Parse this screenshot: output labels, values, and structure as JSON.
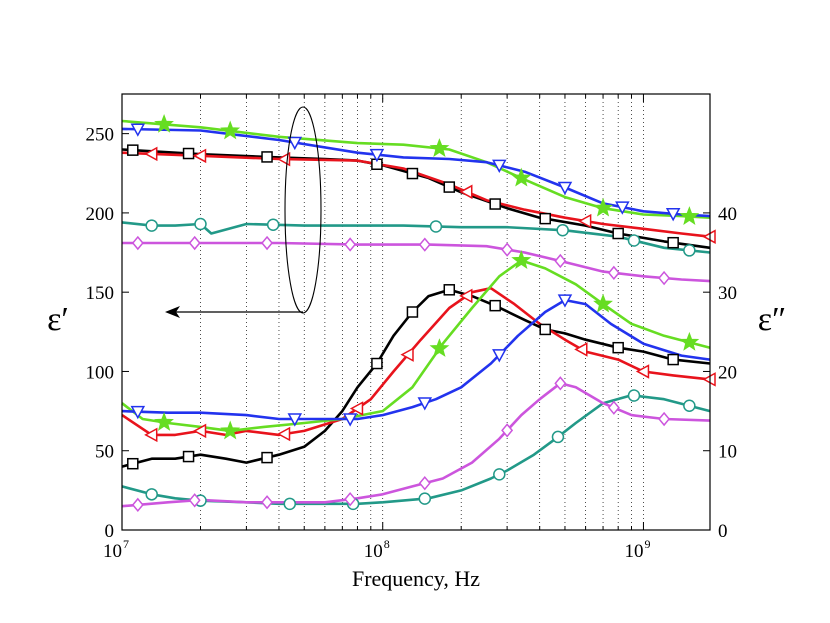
{
  "chart_data": {
    "type": "line",
    "title": "",
    "xlabel": "Frequency, Hz",
    "ylabel_left": "ε′",
    "ylabel_right": "ε″",
    "xscale": "log",
    "xlim": [
      10000000,
      1800000000
    ],
    "ylim_left": [
      0,
      275
    ],
    "ylim_right": [
      0,
      55
    ],
    "xticks": [
      {
        "value": 10000000,
        "base": "10",
        "exp": "7"
      },
      {
        "value": 100000000,
        "base": "10",
        "exp": "8"
      },
      {
        "value": 1000000000,
        "base": "10",
        "exp": "9"
      }
    ],
    "yticks_left": [
      "0",
      "50",
      "100",
      "150",
      "200",
      "250"
    ],
    "yticks_left_values": [
      0,
      50,
      100,
      150,
      200,
      250
    ],
    "yticks_right": [
      "0",
      "10",
      "20",
      "30",
      "40"
    ],
    "yticks_right_values": [
      0,
      10,
      20,
      30,
      40
    ],
    "grid": "dotted vertical",
    "annotation": "ellipse around ε′ curves with arrow pointing to left axis",
    "series": [
      {
        "name": "black-square",
        "color": "#000000",
        "marker": "square",
        "axis": "left",
        "x": [
          10000000.0,
          20000000.0,
          40000000.0,
          60000000.0,
          80000000.0,
          100000000.0,
          150000000.0,
          200000000.0,
          300000000.0,
          400000000.0,
          600000000.0,
          800000000.0,
          1200000000.0,
          1800000000.0
        ],
        "y": [
          240,
          237,
          235,
          234,
          233,
          230,
          222,
          213,
          203,
          197,
          192,
          187,
          182,
          178
        ],
        "mx": [
          11000000.0,
          18000000.0,
          36000000.0,
          95000000.0,
          130000000.0,
          180000000.0,
          270000000.0,
          420000000.0,
          800000000.0,
          1300000000.0
        ]
      },
      {
        "name": "red-triangle",
        "color": "#e8131c",
        "marker": "triangle-left",
        "axis": "left",
        "x": [
          10000000.0,
          20000000.0,
          40000000.0,
          80000000.0,
          120000000.0,
          180000000.0,
          250000000.0,
          350000000.0,
          500000000.0,
          700000000.0,
          1000000000.0,
          1400000000.0,
          1800000000.0
        ],
        "y": [
          238,
          236,
          234,
          233,
          228,
          218,
          208,
          202,
          197,
          193,
          190,
          187,
          185
        ],
        "mx": [
          13000000.0,
          20000000.0,
          42000000.0,
          210000000.0,
          600000000.0,
          1800000000.0
        ]
      },
      {
        "name": "green-star",
        "color": "#66dd22",
        "marker": "star",
        "axis": "left",
        "x": [
          10000000.0,
          20000000.0,
          40000000.0,
          80000000.0,
          120000000.0,
          180000000.0,
          250000000.0,
          350000000.0,
          500000000.0,
          700000000.0,
          1000000000.0,
          1400000000.0,
          1800000000.0
        ],
        "y": [
          258,
          254,
          248,
          244,
          243,
          240,
          232,
          221,
          210,
          203,
          199,
          198,
          197
        ],
        "mx": [
          14500000.0,
          26000000.0,
          165000000.0,
          340000000.0,
          700000000.0,
          1500000000.0
        ]
      },
      {
        "name": "blue-triangle",
        "color": "#2233ee",
        "marker": "triangle-down",
        "axis": "left",
        "x": [
          10000000.0,
          20000000.0,
          40000000.0,
          80000000.0,
          120000000.0,
          180000000.0,
          250000000.0,
          350000000.0,
          500000000.0,
          700000000.0,
          1000000000.0,
          1400000000.0,
          1800000000.0
        ],
        "y": [
          253,
          252,
          246,
          238,
          235,
          234,
          232,
          226,
          216,
          206,
          201,
          199,
          198
        ],
        "mx": [
          11500000.0,
          46000000.0,
          95000000.0,
          280000000.0,
          500000000.0,
          830000000.0,
          1300000000.0
        ]
      },
      {
        "name": "teal-circle",
        "color": "#229988",
        "marker": "circle",
        "axis": "left",
        "x": [
          10000000.0,
          13000000.0,
          16000000.0,
          20000000.0,
          22000000.0,
          30000000.0,
          50000000.0,
          80000000.0,
          120000000.0,
          200000000.0,
          300000000.0,
          500000000.0,
          800000000.0,
          1200000000.0,
          1800000000.0
        ],
        "y": [
          194,
          192,
          192,
          193,
          187,
          193,
          192,
          192,
          192,
          191,
          191,
          189,
          185,
          178,
          175
        ],
        "mx": [
          13000000.0,
          20000000.0,
          38000000.0,
          160000000.0,
          490000000.0,
          920000000.0,
          1500000000.0
        ]
      },
      {
        "name": "magenta-diamond",
        "color": "#cc55dd",
        "marker": "diamond",
        "axis": "left",
        "x": [
          10000000.0,
          20000000.0,
          40000000.0,
          80000000.0,
          150000000.0,
          250000000.0,
          350000000.0,
          500000000.0,
          700000000.0,
          1000000000.0,
          1400000000.0,
          1800000000.0
        ],
        "y": [
          181,
          181,
          181,
          180,
          180,
          179,
          175,
          169,
          163,
          160,
          158,
          157
        ],
        "mx": [
          11500000.0,
          19000000.0,
          36000000.0,
          75000000.0,
          145000000.0,
          300000000.0,
          480000000.0,
          770000000.0,
          1200000000.0
        ]
      },
      {
        "name": "black-square-loss",
        "color": "#000000",
        "marker": "square",
        "axis": "right",
        "x": [
          10000000.0,
          13000000.0,
          16000000.0,
          20000000.0,
          25000000.0,
          30000000.0,
          40000000.0,
          50000000.0,
          60000000.0,
          70000000.0,
          80000000.0,
          95000000.0,
          110000000.0,
          130000000.0,
          150000000.0,
          180000000.0,
          220000000.0,
          270000000.0,
          350000000.0,
          420000000.0,
          500000000.0,
          600000000.0,
          800000000.0,
          1000000000.0,
          1300000000.0,
          1800000000.0
        ],
        "y": [
          8,
          9,
          9,
          9.5,
          9,
          8.5,
          9.5,
          10.5,
          12.5,
          15,
          18,
          21,
          24.5,
          27.5,
          29.5,
          30.3,
          29.5,
          28.3,
          26.5,
          25.3,
          24.8,
          24,
          23,
          22.5,
          21.5,
          21
        ],
        "mx": [
          11000000.0,
          18000000.0,
          36000000.0,
          95000000.0,
          130000000.0,
          180000000.0,
          270000000.0,
          420000000.0,
          800000000.0,
          1300000000.0
        ]
      },
      {
        "name": "red-triangle-loss",
        "color": "#e8131c",
        "marker": "triangle-left",
        "axis": "right",
        "x": [
          10000000.0,
          13000000.0,
          16000000.0,
          20000000.0,
          25000000.0,
          30000000.0,
          40000000.0,
          50000000.0,
          70000000.0,
          90000000.0,
          110000000.0,
          140000000.0,
          180000000.0,
          220000000.0,
          260000000.0,
          320000000.0,
          400000000.0,
          500000000.0,
          600000000.0,
          800000000.0,
          1000000000.0,
          1300000000.0,
          1800000000.0
        ],
        "y": [
          14.5,
          12,
          12,
          12.5,
          12,
          12.5,
          12,
          12.5,
          14,
          16.5,
          20,
          24,
          28,
          30,
          30.5,
          28.5,
          26,
          24,
          22.5,
          21.5,
          20,
          19.5,
          19
        ],
        "mx": [
          13000000.0,
          20000000.0,
          42000000.0,
          80000000.0,
          125000000.0,
          210000000.0,
          580000000.0,
          1000000000.0,
          1800000000.0
        ]
      },
      {
        "name": "green-star-loss",
        "color": "#66dd22",
        "marker": "star",
        "axis": "right",
        "x": [
          10000000.0,
          12000000.0,
          15000000.0,
          20000000.0,
          26000000.0,
          35000000.0,
          50000000.0,
          70000000.0,
          100000000.0,
          130000000.0,
          170000000.0,
          220000000.0,
          280000000.0,
          340000000.0,
          420000000.0,
          550000000.0,
          700000000.0,
          900000000.0,
          1200000000.0,
          1800000000.0
        ],
        "y": [
          16,
          14,
          13.5,
          13,
          12.5,
          13,
          13.5,
          14,
          15,
          18,
          23.5,
          28,
          32,
          34,
          33,
          31,
          28.5,
          26,
          24.5,
          23
        ],
        "mx": [
          14500000.0,
          26000000.0,
          165000000.0,
          340000000.0,
          700000000.0,
          1500000000.0
        ]
      },
      {
        "name": "blue-triangle-loss",
        "color": "#2233ee",
        "marker": "triangle-down",
        "axis": "right",
        "x": [
          10000000.0,
          15000000.0,
          20000000.0,
          30000000.0,
          40000000.0,
          60000000.0,
          80000000.0,
          100000000.0,
          130000000.0,
          160000000.0,
          200000000.0,
          260000000.0,
          330000000.0,
          420000000.0,
          500000000.0,
          600000000.0,
          750000000.0,
          1000000000.0,
          1400000000.0,
          1800000000.0
        ],
        "y": [
          15,
          14.8,
          14.8,
          14.5,
          14,
          14,
          14,
          14.5,
          15.5,
          16.5,
          18,
          21,
          24.5,
          27.5,
          29,
          28.5,
          26,
          23.5,
          22,
          21.5
        ],
        "mx": [
          11500000.0,
          46000000.0,
          75000000.0,
          145000000.0,
          280000000.0,
          500000000.0
        ]
      },
      {
        "name": "teal-circle-loss",
        "color": "#229988",
        "marker": "circle",
        "axis": "right",
        "x": [
          10000000.0,
          13000000.0,
          16000000.0,
          20000000.0,
          30000000.0,
          40000000.0,
          60000000.0,
          80000000.0,
          100000000.0,
          150000000.0,
          200000000.0,
          260000000.0,
          300000000.0,
          380000000.0,
          460000000.0,
          550000000.0,
          700000000.0,
          900000000.0,
          1200000000.0,
          1800000000.0
        ],
        "y": [
          5.5,
          4.5,
          4,
          3.7,
          3.5,
          3.3,
          3.3,
          3.3,
          3.5,
          4,
          5,
          6.5,
          7.5,
          9.5,
          11.5,
          13.5,
          16,
          17,
          16.5,
          15
        ],
        "mx": [
          13000000.0,
          20000000.0,
          44000000.0,
          77000000.0,
          145000000.0,
          280000000.0,
          470000000.0,
          920000000.0,
          1500000000.0
        ]
      },
      {
        "name": "magenta-diamond-loss",
        "color": "#cc55dd",
        "marker": "diamond",
        "axis": "right",
        "x": [
          10000000.0,
          15000000.0,
          20000000.0,
          30000000.0,
          40000000.0,
          60000000.0,
          80000000.0,
          100000000.0,
          130000000.0,
          170000000.0,
          220000000.0,
          280000000.0,
          340000000.0,
          400000000.0,
          480000000.0,
          550000000.0,
          700000000.0,
          900000000.0,
          1200000000.0,
          1800000000.0
        ],
        "y": [
          3,
          3.5,
          3.8,
          3.5,
          3.5,
          3.5,
          4,
          4.5,
          5.5,
          6.5,
          8.5,
          11.5,
          14.5,
          16.5,
          18.5,
          18,
          16,
          14.5,
          14,
          13.8
        ],
        "mx": [
          11500000.0,
          19000000.0,
          36000000.0,
          75000000.0,
          145000000.0,
          300000000.0,
          480000000.0,
          770000000.0,
          1200000000.0
        ]
      }
    ]
  }
}
